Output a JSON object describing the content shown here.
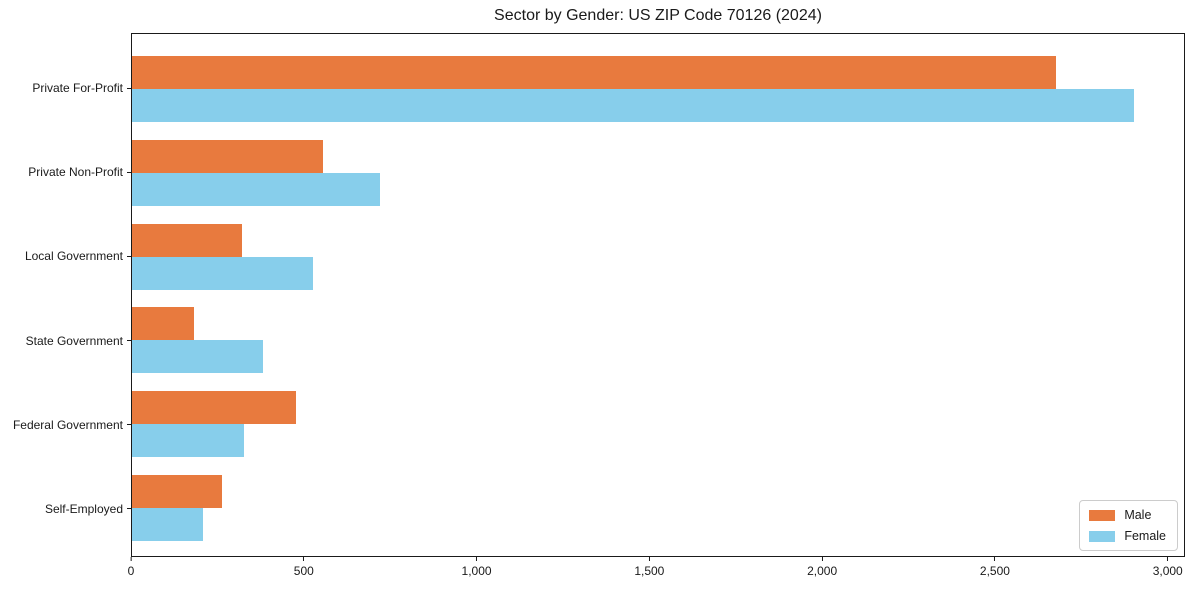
{
  "chart_data": {
    "type": "bar",
    "orientation": "horizontal",
    "title": "Sector by Gender: US ZIP Code 70126 (2024)",
    "categories": [
      "Private For-Profit",
      "Private Non-Profit",
      "Local Government",
      "State Government",
      "Federal Government",
      "Self-Employed"
    ],
    "series": [
      {
        "name": "Male",
        "color": "#e87a3e",
        "values": [
          2680,
          555,
          320,
          180,
          475,
          260
        ]
      },
      {
        "name": "Female",
        "color": "#87ceeb",
        "values": [
          2905,
          720,
          525,
          380,
          325,
          205
        ]
      }
    ],
    "xlabel": "",
    "ylabel": "",
    "xlim": [
      0,
      3050
    ],
    "x_ticks": [
      0,
      500,
      1000,
      1500,
      2000,
      2500,
      3000
    ],
    "x_tick_labels": [
      "0",
      "500",
      "1,000",
      "1,500",
      "2,000",
      "2,500",
      "3,000"
    ],
    "grid": false,
    "legend_position": "lower right",
    "spine_color": "#1a1a1a",
    "background_color": "#ffffff"
  }
}
